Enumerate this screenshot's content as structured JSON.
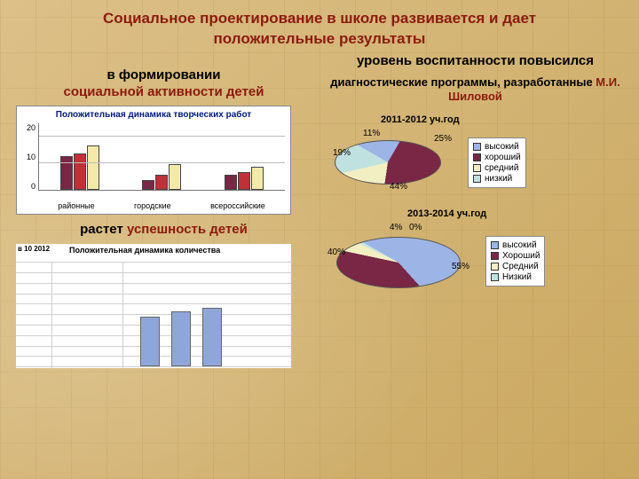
{
  "title": {
    "line1": "Социальное проектирование в школе развивается и дает",
    "line2": "положительные результаты",
    "color": "#8c1a0e"
  },
  "left": {
    "heading_black": "в формировании",
    "heading_red": "социальной активности детей",
    "bar_chart": {
      "type": "bar",
      "title": "Положительная динамика творческих работ",
      "y_ticks": [
        "20",
        "10",
        "0"
      ],
      "y_max": 25,
      "categories": [
        "районные",
        "городские",
        "всероссийские"
      ],
      "series_colors": [
        "#7a2645",
        "#c03038",
        "#f4eaa8"
      ],
      "values": [
        [
          13,
          14,
          17
        ],
        [
          4,
          6,
          10
        ],
        [
          6,
          7,
          9
        ]
      ],
      "border_color": "#444444",
      "grid_color": "#bbbbbb"
    },
    "success_black": "растет ",
    "success_red": "успешность детей",
    "misc_chart": {
      "type": "bar",
      "corner": "в 10\n2012",
      "title": "Положительная динамика количества",
      "grid_rows": 10,
      "bars": [
        {
          "x": 140,
          "h": 56,
          "color": "#8fa6d8"
        },
        {
          "x": 175,
          "h": 62,
          "color": "#8fa6d8"
        },
        {
          "x": 210,
          "h": 66,
          "color": "#8fa6d8"
        }
      ],
      "bg": "#ffffff",
      "grid_color": "#d0d0d0"
    }
  },
  "right": {
    "heading": "уровень воспитанности повысился",
    "note_black": "диагностические программы, разработанные ",
    "note_red": "М.И. Шиловой",
    "pie1": {
      "type": "pie",
      "year": "2011-2012 уч.год",
      "slices": [
        {
          "label": "высокий",
          "value": 25,
          "color": "#9db4e6"
        },
        {
          "label": "хороший",
          "value": 44,
          "color": "#7a2645"
        },
        {
          "label": "средний",
          "value": 19,
          "color": "#f2efc2"
        },
        {
          "label": "низкий",
          "value": 11,
          "color": "#bfe2e0"
        }
      ],
      "pct_labels": {
        "p11": "11%",
        "p19": "19%",
        "p25": "25%",
        "p44": "44%"
      }
    },
    "pie2": {
      "type": "pie",
      "year": "2013-2014 уч.год",
      "slices": [
        {
          "label": "высокий",
          "value": 55,
          "color": "#9db4e6"
        },
        {
          "label": "Хороший",
          "value": 40,
          "color": "#7a2645"
        },
        {
          "label": "Средний",
          "value": 4,
          "color": "#f2efc2"
        },
        {
          "label": "Низкий",
          "value": 0,
          "color": "#bfe2e0"
        }
      ],
      "pct_labels": {
        "p40": "40%",
        "p55": "55%",
        "p4": "4%",
        "p0": "0%"
      }
    },
    "legend1": [
      "высокий",
      "хороший",
      "средний",
      "низкий"
    ],
    "legend2": [
      "высокий",
      "Хороший",
      "Средний",
      "Низкий"
    ],
    "legend_colors": [
      "#9db4e6",
      "#7a2645",
      "#f2efc2",
      "#bfe2e0"
    ]
  }
}
